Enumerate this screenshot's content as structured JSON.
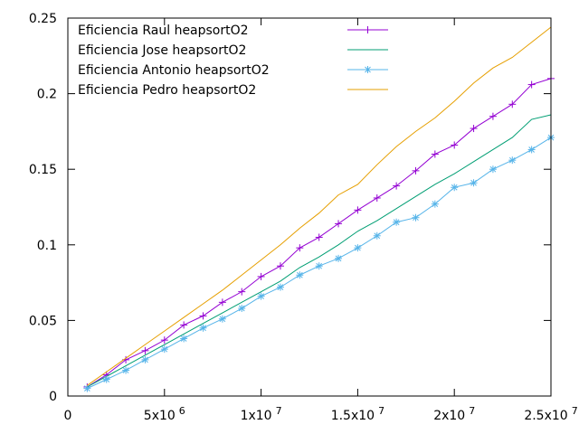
{
  "chart_data": {
    "type": "line",
    "title": "",
    "xlabel": "",
    "ylabel": "",
    "xlim": [
      0,
      25000000
    ],
    "ylim": [
      0,
      0.25
    ],
    "grid": false,
    "legend_position": "top-left",
    "x_ticks": [
      {
        "value": 0,
        "label": "0"
      },
      {
        "value": 5000000,
        "label": "5x10",
        "exp": "6"
      },
      {
        "value": 10000000,
        "label": "1x10",
        "exp": "7"
      },
      {
        "value": 15000000,
        "label": "1.5x10",
        "exp": "7"
      },
      {
        "value": 20000000,
        "label": "2x10",
        "exp": "7"
      },
      {
        "value": 25000000,
        "label": "2.5x10",
        "exp": "7"
      }
    ],
    "y_ticks": [
      {
        "value": 0,
        "label": "0"
      },
      {
        "value": 0.05,
        "label": "0.05"
      },
      {
        "value": 0.1,
        "label": "0.1"
      },
      {
        "value": 0.15,
        "label": "0.15"
      },
      {
        "value": 0.2,
        "label": "0.2"
      },
      {
        "value": 0.25,
        "label": "0.25"
      }
    ],
    "x": [
      1000000,
      2000000,
      3000000,
      4000000,
      5000000,
      6000000,
      7000000,
      8000000,
      9000000,
      10000000,
      11000000,
      12000000,
      13000000,
      14000000,
      15000000,
      16000000,
      17000000,
      18000000,
      19000000,
      20000000,
      21000000,
      22000000,
      23000000,
      24000000,
      25000000
    ],
    "series": [
      {
        "name": "Eficiencia Raul heapsortO2",
        "color": "#9400d3",
        "marker": "plus",
        "values": [
          0.006,
          0.014,
          0.024,
          0.03,
          0.037,
          0.047,
          0.053,
          0.062,
          0.069,
          0.079,
          0.086,
          0.098,
          0.105,
          0.114,
          0.123,
          0.131,
          0.139,
          0.149,
          0.16,
          0.166,
          0.177,
          0.185,
          0.193,
          0.206,
          0.21
        ]
      },
      {
        "name": "Eficiencia Jose heapsortO2",
        "color": "#009e73",
        "marker": "none",
        "values": [
          0.006,
          0.013,
          0.02,
          0.027,
          0.034,
          0.041,
          0.048,
          0.055,
          0.062,
          0.069,
          0.076,
          0.085,
          0.092,
          0.1,
          0.109,
          0.116,
          0.124,
          0.132,
          0.14,
          0.147,
          0.155,
          0.163,
          0.171,
          0.183,
          0.186
        ]
      },
      {
        "name": "Eficiencia Antonio heapsortO2",
        "color": "#56b4e9",
        "marker": "star",
        "values": [
          0.005,
          0.011,
          0.017,
          0.024,
          0.031,
          0.038,
          0.045,
          0.051,
          0.058,
          0.066,
          0.072,
          0.08,
          0.086,
          0.091,
          0.098,
          0.106,
          0.115,
          0.118,
          0.127,
          0.138,
          0.141,
          0.15,
          0.156,
          0.163,
          0.171
        ]
      },
      {
        "name": "Eficiencia Pedro heapsortO2",
        "color": "#e69f00",
        "marker": "none",
        "values": [
          0.007,
          0.016,
          0.025,
          0.034,
          0.043,
          0.052,
          0.061,
          0.07,
          0.08,
          0.09,
          0.1,
          0.111,
          0.121,
          0.133,
          0.14,
          0.153,
          0.165,
          0.175,
          0.184,
          0.195,
          0.207,
          0.217,
          0.224,
          0.234,
          0.244
        ]
      }
    ]
  }
}
